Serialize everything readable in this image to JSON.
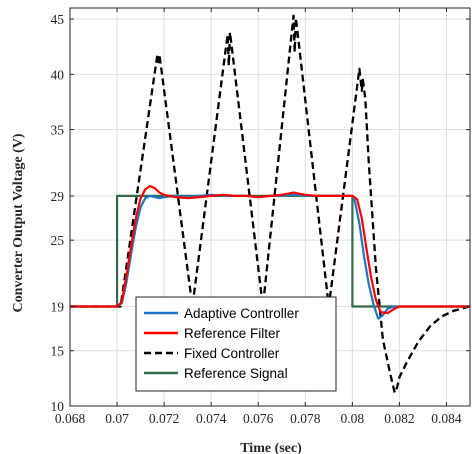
{
  "chart_data": {
    "type": "line",
    "title": "",
    "xlabel": "Time (sec)",
    "ylabel": "Converter Output Voltage (V)",
    "xlim": [
      0.068,
      0.085
    ],
    "ylim": [
      10,
      46
    ],
    "x_ticks": [
      0.068,
      0.07,
      0.072,
      0.074,
      0.076,
      0.078,
      0.08,
      0.082,
      0.084
    ],
    "x_tick_labels": [
      "0.068",
      "0.07",
      "0.072",
      "0.074",
      "0.076",
      "0.078",
      "0.08",
      "0.082",
      "0.084"
    ],
    "y_ticks": [
      10,
      15,
      19,
      25,
      29,
      35,
      40,
      45
    ],
    "y_tick_labels": [
      "10",
      "15",
      "19",
      "25",
      "29",
      "35",
      "40",
      "45"
    ],
    "grid": true,
    "legend_position": "bottom-center",
    "series": [
      {
        "name": "Adaptive Controller",
        "color": "#1f77c4",
        "dash": "solid",
        "x": [
          0.068,
          0.07,
          0.0702,
          0.0704,
          0.0706,
          0.0708,
          0.071,
          0.0712,
          0.0714,
          0.0716,
          0.0718,
          0.072,
          0.0724,
          0.073,
          0.0735,
          0.074,
          0.0745,
          0.075,
          0.0755,
          0.076,
          0.0765,
          0.077,
          0.0775,
          0.078,
          0.0785,
          0.079,
          0.0795,
          0.08,
          0.0801,
          0.0803,
          0.0805,
          0.0807,
          0.0809,
          0.0811,
          0.0813,
          0.0815,
          0.0818,
          0.082,
          0.0825,
          0.083,
          0.084,
          0.085
        ],
        "y": [
          19,
          19,
          19.3,
          21.2,
          23.8,
          26.2,
          28.0,
          28.8,
          29.0,
          28.9,
          28.8,
          28.9,
          29.0,
          28.9,
          29.0,
          29.1,
          29.0,
          29.0,
          29.0,
          28.9,
          29.0,
          29.0,
          29.1,
          29.0,
          29.0,
          29.0,
          29.0,
          29.0,
          28.6,
          26.5,
          23.5,
          21.0,
          19.2,
          17.9,
          18.2,
          18.8,
          19.0,
          19.0,
          19.0,
          19.0,
          19.0,
          19.0
        ]
      },
      {
        "name": "Reference Filter",
        "color": "#ff0000",
        "dash": "solid",
        "x": [
          0.068,
          0.07,
          0.0702,
          0.0704,
          0.0706,
          0.0708,
          0.071,
          0.0712,
          0.0714,
          0.0716,
          0.0718,
          0.072,
          0.0722,
          0.0725,
          0.073,
          0.0735,
          0.074,
          0.0745,
          0.075,
          0.0755,
          0.076,
          0.0765,
          0.077,
          0.0775,
          0.078,
          0.0785,
          0.079,
          0.0795,
          0.08,
          0.0802,
          0.0804,
          0.0806,
          0.0808,
          0.081,
          0.0812,
          0.0815,
          0.0818,
          0.082,
          0.0825,
          0.083,
          0.084,
          0.085
        ],
        "y": [
          19,
          19,
          19.4,
          21.8,
          24.5,
          27.0,
          28.8,
          29.6,
          29.9,
          29.7,
          29.3,
          29.1,
          29.0,
          28.9,
          28.8,
          28.9,
          29.0,
          29.1,
          29.0,
          29.0,
          28.9,
          29.0,
          29.1,
          29.3,
          29.1,
          29.0,
          29.0,
          29.0,
          29.0,
          28.7,
          27.0,
          24.2,
          21.6,
          19.6,
          18.5,
          18.4,
          18.8,
          19.0,
          19.0,
          19.0,
          19.0,
          19.0
        ]
      },
      {
        "name": "Fixed Controller",
        "color": "#000000",
        "dash": "dashed",
        "x": [
          0.068,
          0.07,
          0.07015,
          0.0717,
          0.07175,
          0.0718,
          0.0732,
          0.0747,
          0.07475,
          0.0748,
          0.0762,
          0.0775,
          0.07755,
          0.0776,
          0.079,
          0.0803,
          0.0804,
          0.08045,
          0.08055,
          0.0807,
          0.081,
          0.0813,
          0.0816,
          0.0818,
          0.0819,
          0.082,
          0.0823,
          0.0828,
          0.0833,
          0.0838,
          0.0843,
          0.0848,
          0.085
        ],
        "y": [
          19,
          19,
          19,
          41.6,
          41.1,
          41.8,
          19,
          43.6,
          40.8,
          43.8,
          19,
          45.3,
          42.0,
          45.1,
          19,
          40.5,
          38.5,
          39.5,
          37.8,
          32.0,
          22.5,
          16.0,
          13.0,
          11.2,
          11.7,
          12.6,
          13.9,
          15.8,
          17.2,
          18.1,
          18.6,
          18.9,
          19.0
        ]
      },
      {
        "name": "Reference Signal",
        "color": "#2e6b48",
        "dash": "solid",
        "x": [
          0.068,
          0.07,
          0.07,
          0.08,
          0.08,
          0.085
        ],
        "y": [
          19,
          19,
          29,
          29,
          19,
          19
        ]
      }
    ]
  }
}
